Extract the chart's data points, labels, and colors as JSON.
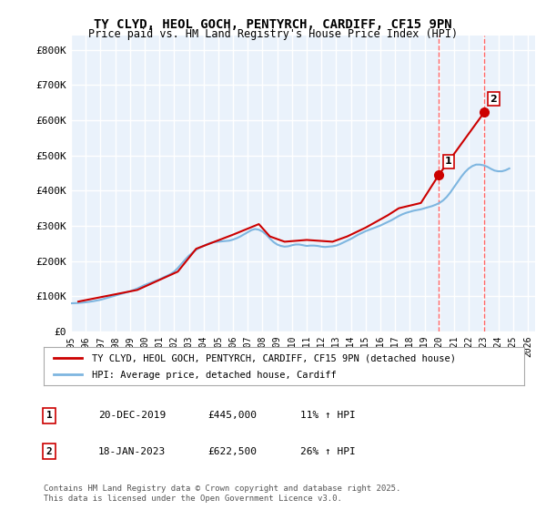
{
  "title_line1": "TY CLYD, HEOL GOCH, PENTYRCH, CARDIFF, CF15 9PN",
  "title_line2": "Price paid vs. HM Land Registry's House Price Index (HPI)",
  "ylabel_ticks": [
    "£0",
    "£100K",
    "£200K",
    "£300K",
    "£400K",
    "£500K",
    "£600K",
    "£700K",
    "£800K"
  ],
  "ytick_values": [
    0,
    100000,
    200000,
    300000,
    400000,
    500000,
    600000,
    700000,
    800000
  ],
  "ylim": [
    0,
    840000
  ],
  "xlim_start": 1995.0,
  "xlim_end": 2026.5,
  "hpi_color": "#7EB6E0",
  "price_color": "#CC0000",
  "background_color": "#EAF2FB",
  "plot_bg": "#EAF2FB",
  "grid_color": "#FFFFFF",
  "vline_color": "#FF6666",
  "vline_style": "--",
  "marker1_x": 2019.97,
  "marker1_y": 445000,
  "marker2_x": 2023.05,
  "marker2_y": 622500,
  "annotation1_label": "1",
  "annotation2_label": "2",
  "legend_label_red": "TY CLYD, HEOL GOCH, PENTYRCH, CARDIFF, CF15 9PN (detached house)",
  "legend_label_blue": "HPI: Average price, detached house, Cardiff",
  "table_row1": [
    "1",
    "20-DEC-2019",
    "£445,000",
    "11% ↑ HPI"
  ],
  "table_row2": [
    "2",
    "18-JAN-2023",
    "£622,500",
    "26% ↑ HPI"
  ],
  "footer": "Contains HM Land Registry data © Crown copyright and database right 2025.\nThis data is licensed under the Open Government Licence v3.0.",
  "hpi_years": [
    1995.0,
    1995.25,
    1995.5,
    1995.75,
    1996.0,
    1996.25,
    1996.5,
    1996.75,
    1997.0,
    1997.25,
    1997.5,
    1997.75,
    1998.0,
    1998.25,
    1998.5,
    1998.75,
    1999.0,
    1999.25,
    1999.5,
    1999.75,
    2000.0,
    2000.25,
    2000.5,
    2000.75,
    2001.0,
    2001.25,
    2001.5,
    2001.75,
    2002.0,
    2002.25,
    2002.5,
    2002.75,
    2003.0,
    2003.25,
    2003.5,
    2003.75,
    2004.0,
    2004.25,
    2004.5,
    2004.75,
    2005.0,
    2005.25,
    2005.5,
    2005.75,
    2006.0,
    2006.25,
    2006.5,
    2006.75,
    2007.0,
    2007.25,
    2007.5,
    2007.75,
    2008.0,
    2008.25,
    2008.5,
    2008.75,
    2009.0,
    2009.25,
    2009.5,
    2009.75,
    2010.0,
    2010.25,
    2010.5,
    2010.75,
    2011.0,
    2011.25,
    2011.5,
    2011.75,
    2012.0,
    2012.25,
    2012.5,
    2012.75,
    2013.0,
    2013.25,
    2013.5,
    2013.75,
    2014.0,
    2014.25,
    2014.5,
    2014.75,
    2015.0,
    2015.25,
    2015.5,
    2015.75,
    2016.0,
    2016.25,
    2016.5,
    2016.75,
    2017.0,
    2017.25,
    2017.5,
    2017.75,
    2018.0,
    2018.25,
    2018.5,
    2018.75,
    2019.0,
    2019.25,
    2019.5,
    2019.75,
    2020.0,
    2020.25,
    2020.5,
    2020.75,
    2021.0,
    2021.25,
    2021.5,
    2021.75,
    2022.0,
    2022.25,
    2022.5,
    2022.75,
    2023.0,
    2023.25,
    2023.5,
    2023.75,
    2024.0,
    2024.25,
    2024.5,
    2024.75
  ],
  "hpi_values": [
    80000,
    80500,
    81000,
    82000,
    83000,
    84500,
    86000,
    88000,
    90000,
    93000,
    96000,
    99000,
    102000,
    105000,
    108000,
    111000,
    114000,
    118000,
    122000,
    127000,
    132000,
    136000,
    140000,
    144000,
    148000,
    153000,
    158000,
    163000,
    170000,
    180000,
    192000,
    204000,
    215000,
    224000,
    232000,
    238000,
    243000,
    248000,
    252000,
    254000,
    255000,
    256000,
    257000,
    258000,
    261000,
    265000,
    270000,
    276000,
    282000,
    288000,
    291000,
    289000,
    284000,
    275000,
    264000,
    254000,
    247000,
    243000,
    241000,
    242000,
    245000,
    247000,
    247000,
    245000,
    243000,
    244000,
    244000,
    243000,
    241000,
    240000,
    241000,
    242000,
    244000,
    248000,
    253000,
    258000,
    263000,
    269000,
    275000,
    280000,
    285000,
    289000,
    293000,
    297000,
    301000,
    306000,
    311000,
    316000,
    322000,
    328000,
    333000,
    337000,
    340000,
    343000,
    345000,
    347000,
    350000,
    353000,
    356000,
    360000,
    365000,
    372000,
    382000,
    395000,
    410000,
    425000,
    440000,
    453000,
    463000,
    470000,
    474000,
    474000,
    472000,
    468000,
    462000,
    457000,
    455000,
    455000,
    458000,
    463000
  ],
  "price_years": [
    1995.5,
    1999.5,
    2002.25,
    2003.5,
    2006.0,
    2007.75,
    2008.5,
    2009.5,
    2011.0,
    2012.75,
    2013.75,
    2015.0,
    2016.5,
    2017.25,
    2018.75,
    2019.97,
    2023.05
  ],
  "price_values": [
    85000,
    118000,
    170000,
    235000,
    275000,
    305000,
    270000,
    255000,
    260000,
    255000,
    270000,
    295000,
    330000,
    350000,
    365000,
    445000,
    622500
  ]
}
